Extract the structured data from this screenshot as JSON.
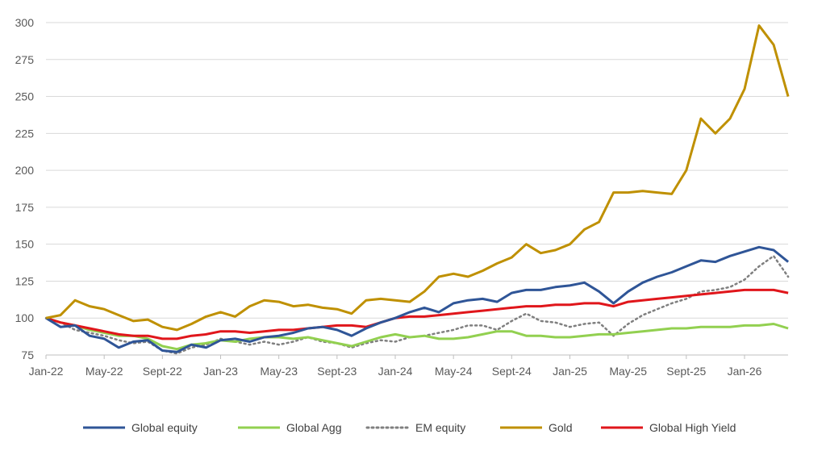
{
  "chart_data": {
    "type": "line",
    "title": "",
    "xlabel": "",
    "ylabel": "",
    "ylim": [
      75,
      300
    ],
    "yticks": [
      "75",
      "100",
      "125",
      "150",
      "175",
      "200",
      "225",
      "250",
      "275",
      "300"
    ],
    "xticks": [
      "Jan-22",
      "May-22",
      "Sept-22",
      "Jan-23",
      "May-23",
      "Sept-23",
      "Jan-24",
      "May-24",
      "Sept-24",
      "Jan-25",
      "May-25",
      "Sept-25",
      "Jan-26"
    ],
    "grid": "horizontal",
    "legend_position": "bottom",
    "x_start": "2022-01",
    "x_end": "2026-04",
    "x_frequency": "monthly",
    "series": [
      {
        "name": "Global equity",
        "color": "#2f5597",
        "style": "solid",
        "values": [
          100,
          94,
          95,
          88,
          86,
          80,
          84,
          85,
          78,
          77,
          82,
          80,
          85,
          86,
          84,
          87,
          88,
          90,
          93,
          94,
          92,
          88,
          93,
          97,
          100,
          104,
          107,
          104,
          110,
          112,
          113,
          111,
          117,
          119,
          119,
          121,
          122,
          124,
          118,
          110,
          118,
          124,
          128,
          131,
          135,
          139,
          138,
          142,
          145,
          148,
          146,
          138
        ]
      },
      {
        "name": "Global Agg",
        "color": "#92d050",
        "style": "solid",
        "values": [
          100,
          97,
          95,
          92,
          90,
          88,
          88,
          86,
          81,
          79,
          82,
          83,
          85,
          84,
          86,
          87,
          87,
          86,
          87,
          85,
          83,
          81,
          84,
          87,
          89,
          87,
          88,
          86,
          86,
          87,
          89,
          91,
          91,
          88,
          88,
          87,
          87,
          88,
          89,
          89,
          90,
          91,
          92,
          93,
          93,
          94,
          94,
          94,
          95,
          95,
          96,
          93
        ]
      },
      {
        "name": "EM equity",
        "color": "#7f7f7f",
        "style": "dotted",
        "values": [
          100,
          97,
          92,
          90,
          88,
          85,
          83,
          84,
          78,
          76,
          80,
          82,
          86,
          84,
          82,
          84,
          82,
          84,
          87,
          84,
          83,
          80,
          83,
          85,
          84,
          87,
          88,
          90,
          92,
          95,
          95,
          92,
          98,
          103,
          98,
          97,
          94,
          96,
          97,
          88,
          96,
          102,
          106,
          110,
          113,
          118,
          119,
          121,
          126,
          135,
          142,
          128
        ]
      },
      {
        "name": "Gold",
        "color": "#bf9000",
        "style": "solid",
        "values": [
          100,
          102,
          112,
          108,
          106,
          102,
          98,
          99,
          94,
          92,
          96,
          101,
          104,
          101,
          108,
          112,
          111,
          108,
          109,
          107,
          106,
          103,
          112,
          113,
          112,
          111,
          118,
          128,
          130,
          128,
          132,
          137,
          141,
          150,
          144,
          146,
          150,
          160,
          165,
          185,
          185,
          186,
          185,
          184,
          200,
          235,
          225,
          235,
          255,
          298,
          285,
          250
        ]
      },
      {
        "name": "Global High Yield",
        "color": "#e0161b",
        "style": "solid",
        "values": [
          100,
          97,
          95,
          93,
          91,
          89,
          88,
          88,
          86,
          86,
          88,
          89,
          91,
          91,
          90,
          91,
          92,
          92,
          93,
          94,
          95,
          95,
          94,
          97,
          100,
          101,
          101,
          102,
          103,
          104,
          105,
          106,
          107,
          108,
          108,
          109,
          109,
          110,
          110,
          108,
          111,
          112,
          113,
          114,
          115,
          116,
          117,
          118,
          119,
          119,
          119,
          117
        ]
      }
    ]
  }
}
